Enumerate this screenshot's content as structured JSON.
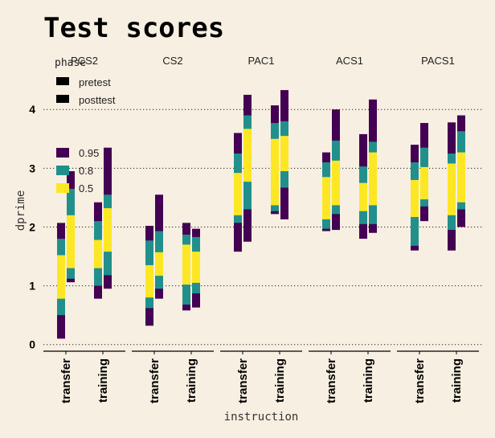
{
  "chart_data": {
    "type": "bar",
    "title": "Test scores",
    "xlabel": "instruction",
    "ylabel": "dprime",
    "ylim": [
      -0.1,
      4.55
    ],
    "yticks": [
      0,
      1,
      2,
      3,
      4
    ],
    "grid": true,
    "facets": [
      "PCS2",
      "CS2",
      "PAC1",
      "ACS1",
      "PACS1"
    ],
    "categories": [
      "transfer",
      "training"
    ],
    "phases": [
      "pretest",
      "posttest"
    ],
    "legend": {
      "position": "top-left",
      "phase_title": "phase",
      "phase_items": [
        "pretest",
        "posttest"
      ],
      "interval_items": [
        "0.95",
        "0.8",
        "0.5"
      ]
    },
    "interval_colors": {
      "0.95": "#440154",
      "0.8": "#21908c",
      "0.5": "#fde725"
    },
    "intervals": [
      {
        "facet": "PCS2",
        "category": "transfer",
        "phase": "pretest",
        "i95": [
          0.1,
          2.07
        ],
        "i80": [
          0.5,
          1.8
        ],
        "i50": [
          0.78,
          1.52
        ]
      },
      {
        "facet": "PCS2",
        "category": "transfer",
        "phase": "posttest",
        "i95": [
          1.06,
          2.95
        ],
        "i80": [
          1.12,
          2.65
        ],
        "i50": [
          1.3,
          2.2
        ]
      },
      {
        "facet": "PCS2",
        "category": "training",
        "phase": "pretest",
        "i95": [
          0.78,
          2.42
        ],
        "i80": [
          1.0,
          2.1
        ],
        "i50": [
          1.3,
          1.78
        ]
      },
      {
        "facet": "PCS2",
        "category": "training",
        "phase": "posttest",
        "i95": [
          0.95,
          3.35
        ],
        "i80": [
          1.18,
          2.55
        ],
        "i50": [
          1.58,
          2.32
        ]
      },
      {
        "facet": "CS2",
        "category": "transfer",
        "phase": "pretest",
        "i95": [
          0.32,
          2.02
        ],
        "i80": [
          0.62,
          1.77
        ],
        "i50": [
          0.8,
          1.35
        ]
      },
      {
        "facet": "CS2",
        "category": "transfer",
        "phase": "posttest",
        "i95": [
          0.78,
          2.55
        ],
        "i80": [
          0.95,
          1.93
        ],
        "i50": [
          1.17,
          1.57
        ]
      },
      {
        "facet": "CS2",
        "category": "training",
        "phase": "pretest",
        "i95": [
          0.58,
          2.07
        ],
        "i80": [
          0.68,
          1.87
        ],
        "i50": [
          1.02,
          1.7
        ]
      },
      {
        "facet": "CS2",
        "category": "training",
        "phase": "posttest",
        "i95": [
          0.63,
          1.97
        ],
        "i80": [
          0.87,
          1.83
        ],
        "i50": [
          1.05,
          1.58
        ]
      },
      {
        "facet": "PAC1",
        "category": "transfer",
        "phase": "pretest",
        "i95": [
          1.58,
          3.6
        ],
        "i80": [
          2.07,
          3.25
        ],
        "i50": [
          2.2,
          2.92
        ]
      },
      {
        "facet": "PAC1",
        "category": "transfer",
        "phase": "posttest",
        "i95": [
          1.75,
          4.25
        ],
        "i80": [
          2.3,
          3.9
        ],
        "i50": [
          2.77,
          3.67
        ]
      },
      {
        "facet": "PAC1",
        "category": "training",
        "phase": "pretest",
        "i95": [
          2.22,
          4.07
        ],
        "i80": [
          2.27,
          3.77
        ],
        "i50": [
          2.37,
          3.5
        ]
      },
      {
        "facet": "PAC1",
        "category": "training",
        "phase": "posttest",
        "i95": [
          2.13,
          4.33
        ],
        "i80": [
          2.67,
          3.8
        ],
        "i50": [
          2.95,
          3.55
        ]
      },
      {
        "facet": "ACS1",
        "category": "transfer",
        "phase": "pretest",
        "i95": [
          1.93,
          3.27
        ],
        "i80": [
          1.97,
          3.1
        ],
        "i50": [
          2.13,
          2.85
        ]
      },
      {
        "facet": "ACS1",
        "category": "transfer",
        "phase": "posttest",
        "i95": [
          1.95,
          4.0
        ],
        "i80": [
          2.22,
          3.47
        ],
        "i50": [
          2.37,
          3.13
        ]
      },
      {
        "facet": "ACS1",
        "category": "training",
        "phase": "pretest",
        "i95": [
          1.8,
          3.58
        ],
        "i80": [
          2.05,
          3.03
        ],
        "i50": [
          2.27,
          2.75
        ]
      },
      {
        "facet": "ACS1",
        "category": "training",
        "phase": "posttest",
        "i95": [
          1.9,
          4.17
        ],
        "i80": [
          2.05,
          3.45
        ],
        "i50": [
          2.37,
          3.27
        ]
      },
      {
        "facet": "PACS1",
        "category": "transfer",
        "phase": "pretest",
        "i95": [
          1.6,
          3.4
        ],
        "i80": [
          1.68,
          3.1
        ],
        "i50": [
          2.17,
          2.8
        ]
      },
      {
        "facet": "PACS1",
        "category": "transfer",
        "phase": "posttest",
        "i95": [
          2.1,
          3.77
        ],
        "i80": [
          2.35,
          3.35
        ],
        "i50": [
          2.47,
          3.02
        ]
      },
      {
        "facet": "PACS1",
        "category": "training",
        "phase": "pretest",
        "i95": [
          1.6,
          3.78
        ],
        "i80": [
          1.95,
          3.25
        ],
        "i50": [
          2.2,
          3.08
        ]
      },
      {
        "facet": "PACS1",
        "category": "training",
        "phase": "posttest",
        "i95": [
          2.0,
          3.9
        ],
        "i80": [
          2.3,
          3.63
        ],
        "i50": [
          2.42,
          3.27
        ]
      }
    ]
  }
}
